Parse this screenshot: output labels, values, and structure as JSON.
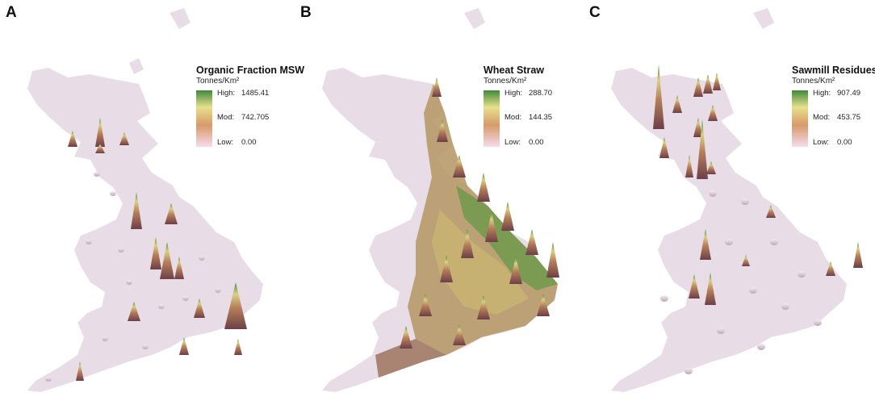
{
  "panels": [
    {
      "letter": "A",
      "legend": {
        "title": "Organic Fraction MSW",
        "units": "Tonnes/Km²",
        "high_label": "High:",
        "high_value": "1485.41",
        "mod_label": "Mod:",
        "mod_value": "742.705",
        "low_label": "Low:",
        "low_value": "0.00"
      }
    },
    {
      "letter": "B",
      "legend": {
        "title": "Wheat Straw",
        "units": "Tonnes/Km²",
        "high_label": "High:",
        "high_value": "288.70",
        "mod_label": "Mod:",
        "mod_value": "144.35",
        "low_label": "Low:",
        "low_value": "0.00"
      }
    },
    {
      "letter": "C",
      "legend": {
        "title": "Sawmill Residues",
        "units": "Tonnes/Km²",
        "high_label": "High:",
        "high_value": "907.49",
        "mod_label": "Mod:",
        "mod_value": "453.75",
        "low_label": "Low:",
        "low_value": "0.00"
      }
    }
  ],
  "colors": {
    "land": "#e8dde6",
    "land_edge": "#d6c8d3",
    "ramp_high": "#3f8a3a",
    "ramp_mid_high": "#e7e08c",
    "ramp_mid": "#d79a6a",
    "ramp_low": "#f2d6e6",
    "spike_base": "#7a4a4e"
  }
}
